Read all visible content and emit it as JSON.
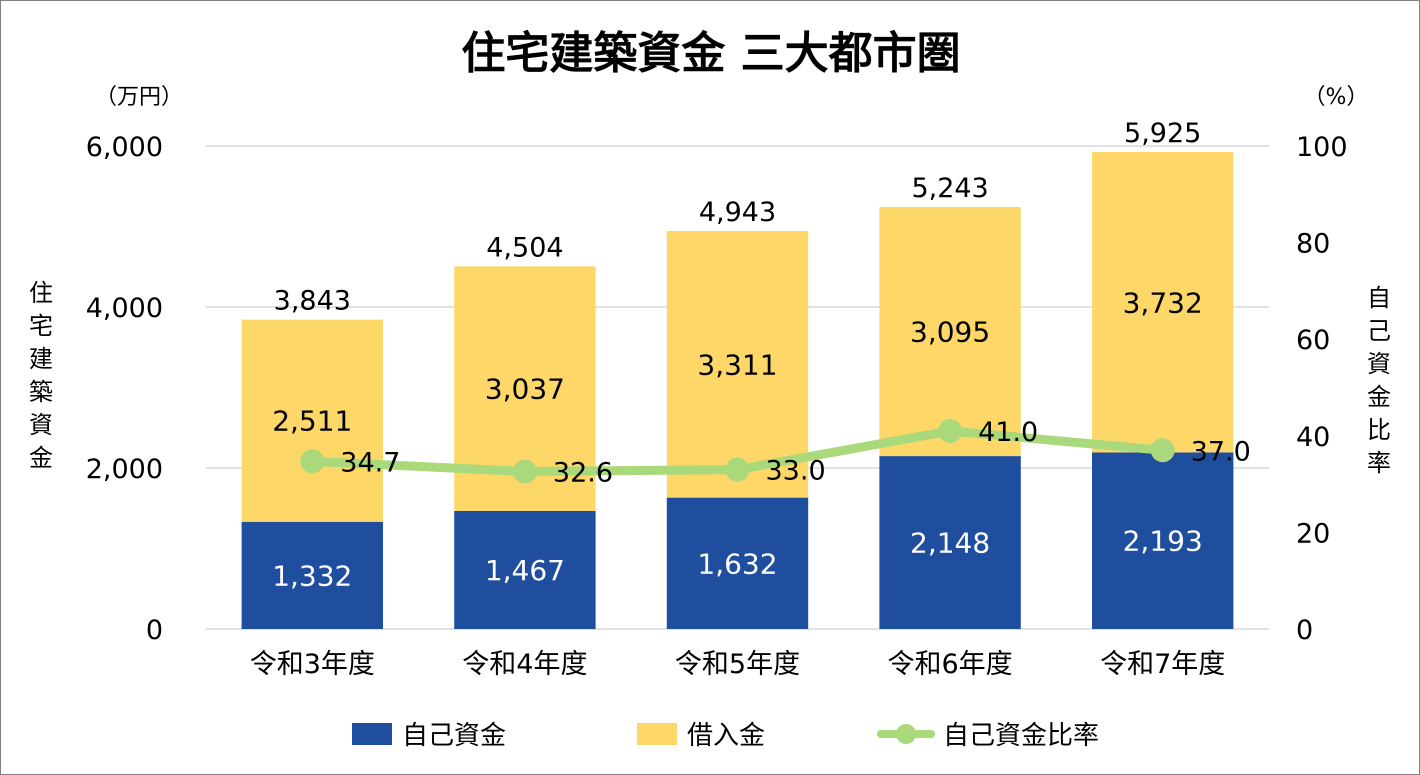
{
  "chart_data": {
    "type": "bar",
    "stacked": true,
    "title": "住宅建築資金 三大都市圏",
    "ylabel": "住宅建築資金",
    "ylabel_right": "自己資金比率",
    "y_unit": "（万円）",
    "y2_unit": "（%）",
    "ylim": [
      0,
      6000
    ],
    "y2lim": [
      0,
      100
    ],
    "yticks": [
      "0",
      "2,000",
      "4,000",
      "6,000"
    ],
    "y2ticks": [
      "0",
      "20",
      "40",
      "60",
      "80",
      "100"
    ],
    "grid": true,
    "legend_position": "bottom",
    "categories": [
      "令和3年度",
      "令和4年度",
      "令和5年度",
      "令和6年度",
      "令和7年度"
    ],
    "series": [
      {
        "name": "自己資金",
        "type": "bar",
        "color": "#1f4e9e",
        "label_color": "#ffffff",
        "values": [
          1332,
          1467,
          1632,
          2148,
          2193
        ],
        "labels": [
          "1,332",
          "1,467",
          "1,632",
          "2,148",
          "2,193"
        ]
      },
      {
        "name": "借入金",
        "type": "bar",
        "color": "#fdd767",
        "label_color": "#000000",
        "values": [
          2511,
          3037,
          3311,
          3095,
          3732
        ],
        "labels": [
          "2,511",
          "3,037",
          "3,311",
          "3,095",
          "3,732"
        ]
      },
      {
        "name": "自己資金比率",
        "type": "line",
        "axis": "right",
        "color": "#a9d97a",
        "values": [
          34.7,
          32.6,
          33.0,
          41.0,
          37.0
        ],
        "labels": [
          "34.7",
          "32.6",
          "33.0",
          "41.0",
          "37.0"
        ]
      }
    ],
    "totals": [
      3843,
      4504,
      4943,
      5243,
      5925
    ],
    "total_labels": [
      "3,843",
      "4,504",
      "4,943",
      "5,243",
      "5,925"
    ]
  }
}
